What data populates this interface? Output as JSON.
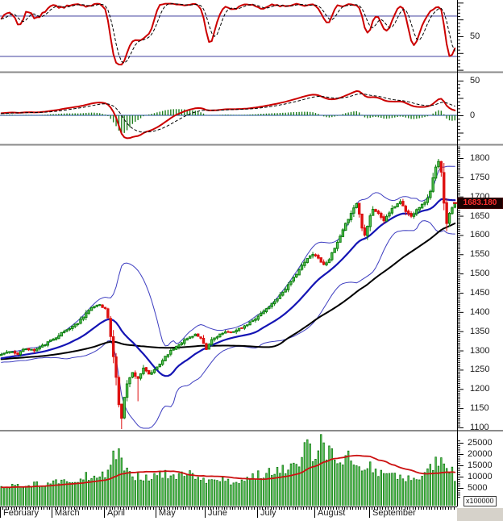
{
  "palette": {
    "line_red": "#cc0000",
    "dash_black": "#000000",
    "ref_blue": "#5353a8",
    "zero_blue": "#4a6fb5",
    "hist_green": "#1e7d1e",
    "candle_up_fill": "#5cc75c",
    "candle_up_border": "#0b7d0b",
    "candle_down": "#de1010",
    "boll_thin_blue": "#3d3dc0",
    "boll_mid_blue": "#1414b4",
    "ma_black": "#000000",
    "vol_fill": "#53bf53",
    "vol_border": "#0c720c",
    "vol_ma_red": "#cc1111",
    "axis_black": "#000000",
    "divider_gray": "#8a8a8a",
    "corner_gray": "#d6d2ca"
  },
  "chart_data": [
    {
      "id": "stochastic_panel",
      "type": "line",
      "panel": "top",
      "ylim": [
        0,
        100
      ],
      "ytick_labels": [
        {
          "value": 50,
          "label": "50"
        }
      ],
      "reference_lines": [
        80,
        20
      ],
      "series": [
        {
          "name": "stochastic-main",
          "style": "solid",
          "color": "red",
          "derived": "SMA3 of Stochastic %K(14) of price panel"
        },
        {
          "name": "stochastic-signal",
          "style": "dashed",
          "color": "black",
          "derived": "SMA4 of stochastic-main"
        }
      ]
    },
    {
      "id": "oscillator_panel",
      "type": "line+histogram",
      "panel": "upper-middle",
      "ytick_labels": [
        {
          "value": 50,
          "label": "50"
        },
        {
          "value": 0,
          "label": "0"
        }
      ],
      "zero_line": 0,
      "series": [
        {
          "name": "oscillator",
          "style": "solid",
          "color": "red",
          "derived": "MACD(12,26) of close, scaled to panel"
        },
        {
          "name": "oscillator-signal",
          "style": "dashed",
          "color": "black",
          "derived": "EMA9 of oscillator"
        },
        {
          "name": "oscillator-histogram",
          "style": "bars",
          "color": "green",
          "derived": "oscillator minus signal"
        }
      ]
    },
    {
      "id": "price_panel",
      "type": "candlestick",
      "panel": "main",
      "ylim": [
        1096,
        1831
      ],
      "ytick_step": 50,
      "ytick_values": [
        1800,
        1750,
        1700,
        1650,
        1600,
        1550,
        1500,
        1450,
        1400,
        1350,
        1300,
        1250,
        1200,
        1150,
        1100
      ],
      "last_price": 1683.18,
      "last_price_label": "1683.180",
      "days_total": 167,
      "close_keypoints": [
        [
          0,
          1288
        ],
        [
          3,
          1298
        ],
        [
          6,
          1292
        ],
        [
          9,
          1305
        ],
        [
          12,
          1300
        ],
        [
          15,
          1312
        ],
        [
          19,
          1330
        ],
        [
          22,
          1345
        ],
        [
          25,
          1358
        ],
        [
          28,
          1372
        ],
        [
          31,
          1398
        ],
        [
          34,
          1415
        ],
        [
          36,
          1420
        ],
        [
          38,
          1408
        ],
        [
          39,
          1385
        ],
        [
          40,
          1335
        ],
        [
          41,
          1285
        ],
        [
          42,
          1230
        ],
        [
          43,
          1160
        ],
        [
          44,
          1122
        ],
        [
          45,
          1180
        ],
        [
          46,
          1215
        ],
        [
          48,
          1242
        ],
        [
          50,
          1228
        ],
        [
          52,
          1252
        ],
        [
          54,
          1238
        ],
        [
          56,
          1248
        ],
        [
          58,
          1265
        ],
        [
          60,
          1285
        ],
        [
          63,
          1305
        ],
        [
          66,
          1322
        ],
        [
          69,
          1335
        ],
        [
          71,
          1342
        ],
        [
          73,
          1330
        ],
        [
          75,
          1302
        ],
        [
          77,
          1328
        ],
        [
          80,
          1342
        ],
        [
          83,
          1348
        ],
        [
          86,
          1352
        ],
        [
          89,
          1362
        ],
        [
          92,
          1378
        ],
        [
          94,
          1390
        ],
        [
          97,
          1408
        ],
        [
          100,
          1428
        ],
        [
          103,
          1452
        ],
        [
          106,
          1478
        ],
        [
          108,
          1500
        ],
        [
          110,
          1520
        ],
        [
          112,
          1538
        ],
        [
          114,
          1552
        ],
        [
          116,
          1540
        ],
        [
          118,
          1522
        ],
        [
          120,
          1538
        ],
        [
          122,
          1565
        ],
        [
          124,
          1595
        ],
        [
          126,
          1628
        ],
        [
          128,
          1658
        ],
        [
          130,
          1682
        ],
        [
          131,
          1655
        ],
        [
          132,
          1618
        ],
        [
          133,
          1602
        ],
        [
          134,
          1625
        ],
        [
          135,
          1650
        ],
        [
          136,
          1668
        ],
        [
          138,
          1655
        ],
        [
          140,
          1638
        ],
        [
          142,
          1658
        ],
        [
          144,
          1675
        ],
        [
          146,
          1688
        ],
        [
          148,
          1662
        ],
        [
          150,
          1648
        ],
        [
          152,
          1668
        ],
        [
          154,
          1678
        ],
        [
          156,
          1695
        ],
        [
          157,
          1715
        ],
        [
          158,
          1748
        ],
        [
          159,
          1775
        ],
        [
          160,
          1790
        ],
        [
          161,
          1762
        ],
        [
          162,
          1685
        ],
        [
          163,
          1632
        ],
        [
          164,
          1655
        ],
        [
          165,
          1672
        ],
        [
          166,
          1683.18
        ]
      ],
      "wick_overrides": {
        "44": {
          "low": 1088
        },
        "50": {
          "low": 1168
        },
        "160": {
          "high": 1795
        }
      },
      "overlays": [
        {
          "name": "bollinger-upper",
          "derived": "SMA20 + 2*stdev20",
          "style": "thin-blue"
        },
        {
          "name": "bollinger-lower",
          "derived": "SMA20 - 2*stdev20",
          "style": "thin-blue"
        },
        {
          "name": "moving-average-20",
          "derived": "SMA20",
          "style": "thick-blue"
        },
        {
          "name": "moving-average-60",
          "derived": "SMA60",
          "style": "black"
        }
      ]
    },
    {
      "id": "volume_panel",
      "type": "bar",
      "panel": "bottom",
      "ytick_values": [
        25000,
        20000,
        15000,
        10000,
        5000
      ],
      "multiplier_label": "x100000",
      "volume_keypoints": [
        [
          0,
          5000
        ],
        [
          4,
          6500
        ],
        [
          8,
          5500
        ],
        [
          12,
          7000
        ],
        [
          16,
          6200
        ],
        [
          19,
          7500
        ],
        [
          23,
          9000
        ],
        [
          27,
          8500
        ],
        [
          31,
          10500
        ],
        [
          34,
          9800
        ],
        [
          36,
          11000
        ],
        [
          38,
          10500
        ],
        [
          40,
          15000
        ],
        [
          41,
          21500
        ],
        [
          42,
          17500
        ],
        [
          43,
          22500
        ],
        [
          44,
          16000
        ],
        [
          46,
          12000
        ],
        [
          48,
          9800
        ],
        [
          51,
          10500
        ],
        [
          54,
          9200
        ],
        [
          57,
          10200
        ],
        [
          60,
          11000
        ],
        [
          63,
          9600
        ],
        [
          66,
          10500
        ],
        [
          69,
          11500
        ],
        [
          72,
          9200
        ],
        [
          75,
          8200
        ],
        [
          78,
          7600
        ],
        [
          81,
          8800
        ],
        [
          84,
          7200
        ],
        [
          87,
          8200
        ],
        [
          90,
          9600
        ],
        [
          93,
          11000
        ],
        [
          96,
          11500
        ],
        [
          99,
          13000
        ],
        [
          102,
          14000
        ],
        [
          105,
          13200
        ],
        [
          108,
          15500
        ],
        [
          110,
          17000
        ],
        [
          112,
          26500
        ],
        [
          114,
          16000
        ],
        [
          117,
          28800
        ],
        [
          119,
          18000
        ],
        [
          121,
          22500
        ],
        [
          123,
          17000
        ],
        [
          125,
          15500
        ],
        [
          127,
          21500
        ],
        [
          129,
          16500
        ],
        [
          131,
          15000
        ],
        [
          133,
          13500
        ],
        [
          135,
          14500
        ],
        [
          137,
          11500
        ],
        [
          139,
          12500
        ],
        [
          141,
          10800
        ],
        [
          143,
          11500
        ],
        [
          145,
          9800
        ],
        [
          147,
          8800
        ],
        [
          149,
          9200
        ],
        [
          151,
          8200
        ],
        [
          153,
          10200
        ],
        [
          155,
          12500
        ],
        [
          157,
          14500
        ],
        [
          159,
          16200
        ],
        [
          161,
          18500
        ],
        [
          162,
          15500
        ],
        [
          163,
          12200
        ],
        [
          164,
          10800
        ],
        [
          165,
          13500
        ],
        [
          166,
          9800
        ]
      ],
      "volume_spikes": {
        "41": 21500,
        "43": 22500,
        "112": 26500,
        "117": 28800,
        "121": 22500,
        "127": 21500,
        "161": 18500
      },
      "overlay": {
        "name": "volume-ma",
        "derived": "SMA25 of volume",
        "color": "red"
      }
    }
  ],
  "x_axis": {
    "months": [
      "February",
      "March",
      "April",
      "May",
      "June",
      "July",
      "August",
      "September"
    ],
    "month_start_days": [
      0,
      19,
      38,
      57,
      75,
      94,
      115,
      135
    ],
    "days_total": 167
  }
}
